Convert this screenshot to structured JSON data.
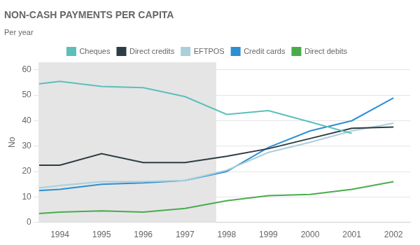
{
  "chart_data": {
    "type": "line",
    "title": "NON-CASH PAYMENTS PER CAPITA",
    "subtitle": "Per year",
    "y_label": "No",
    "x": [
      1993.5,
      1994,
      1995,
      1996,
      1997,
      1998,
      1999,
      2000,
      2001,
      2002
    ],
    "series": [
      {
        "name": "Cheques",
        "color": "#5bbfba",
        "values": [
          54.5,
          55.5,
          53.5,
          53.0,
          49.5,
          42.5,
          44.0,
          39.5,
          35.0,
          null
        ]
      },
      {
        "name": "Direct credits",
        "color": "#2e3d42",
        "values": [
          22.5,
          22.5,
          27.0,
          23.5,
          23.5,
          26.0,
          29.0,
          33.0,
          37.0,
          37.5
        ]
      },
      {
        "name": "EFTPOS",
        "color": "#aacfdb",
        "values": [
          13.5,
          14.5,
          16.0,
          16.0,
          16.5,
          20.5,
          27.5,
          31.5,
          36.0,
          39.0
        ]
      },
      {
        "name": "Credit cards",
        "color": "#2b8fd4",
        "values": [
          12.5,
          13.0,
          15.0,
          15.5,
          16.5,
          20.0,
          29.5,
          36.0,
          40.0,
          49.0
        ]
      },
      {
        "name": "Direct debits",
        "color": "#4aab4a",
        "values": [
          3.5,
          4.0,
          4.5,
          4.0,
          5.5,
          8.5,
          10.5,
          11.0,
          13.0,
          16.0
        ]
      }
    ],
    "shaded_x_range": [
      1993.5,
      1997.75
    ],
    "xlim": [
      1993.5,
      2002.4
    ],
    "xticks": [
      1994,
      1995,
      1996,
      1997,
      1998,
      1999,
      2000,
      2001,
      2002
    ],
    "ylim": [
      0,
      63
    ],
    "yticks": [
      0,
      10,
      20,
      30,
      40,
      50,
      60
    ],
    "grid": "y",
    "legend": "top"
  }
}
